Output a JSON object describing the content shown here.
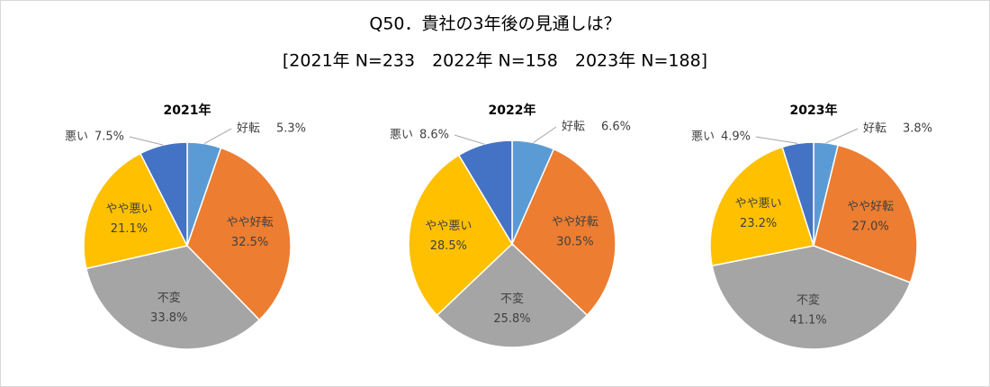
{
  "title": "Q50．貴社の3年後の見通しは？",
  "subtitle": "[2021年 N=233　2022年 N=158　2023年 N=188]",
  "chart_data": [
    {
      "type": "pie",
      "title": "2021年",
      "categories": [
        "好転",
        "やや好転",
        "不変",
        "やや悪い",
        "悪い"
      ],
      "values": [
        5.3,
        32.5,
        33.8,
        21.1,
        7.5
      ],
      "value_labels": [
        "5.3%",
        "32.5%",
        "33.8%",
        "21.1%",
        "7.5%"
      ],
      "colors": [
        "#5b9bd5",
        "#ed7d31",
        "#a5a5a5",
        "#ffc000",
        "#4472c4"
      ]
    },
    {
      "type": "pie",
      "title": "2022年",
      "categories": [
        "好転",
        "やや好転",
        "不変",
        "やや悪い",
        "悪い"
      ],
      "values": [
        6.6,
        30.5,
        25.8,
        28.5,
        8.6
      ],
      "value_labels": [
        "6.6%",
        "30.5%",
        "25.8%",
        "28.5%",
        "8.6%"
      ],
      "colors": [
        "#5b9bd5",
        "#ed7d31",
        "#a5a5a5",
        "#ffc000",
        "#4472c4"
      ]
    },
    {
      "type": "pie",
      "title": "2023年",
      "categories": [
        "好転",
        "やや好転",
        "不変",
        "やや悪い",
        "悪い"
      ],
      "values": [
        3.8,
        27.0,
        41.1,
        23.2,
        4.9
      ],
      "value_labels": [
        "3.8%",
        "27.0%",
        "41.1%",
        "23.2%",
        "4.9%"
      ],
      "colors": [
        "#5b9bd5",
        "#ed7d31",
        "#a5a5a5",
        "#ffc000",
        "#4472c4"
      ]
    }
  ]
}
